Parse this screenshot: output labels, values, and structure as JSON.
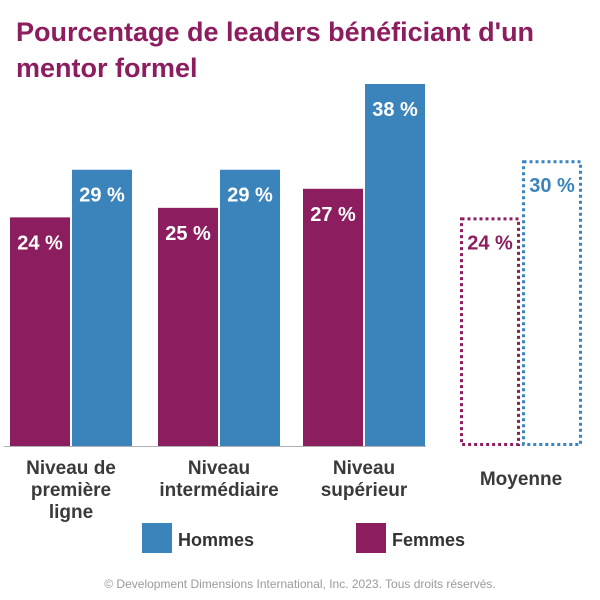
{
  "chart_data": {
    "type": "bar",
    "title": "Pourcentage de leaders bénéficiant d'un mentor formel",
    "categories": [
      "Niveau de première ligne",
      "Niveau intermédiaire",
      "Niveau supérieur",
      "Moyenne"
    ],
    "category_lines": [
      [
        "Niveau de",
        "première",
        "ligne"
      ],
      [
        "Niveau",
        "intermédiaire"
      ],
      [
        "Niveau",
        "supérieur"
      ],
      [
        "Moyenne"
      ]
    ],
    "series": [
      {
        "name": "Femmes",
        "values": [
          24,
          25,
          27,
          24
        ],
        "value_labels": [
          "24 %",
          "25 %",
          "27 %",
          "24 %"
        ],
        "color": "#8c1d5f"
      },
      {
        "name": "Hommes",
        "values": [
          29,
          29,
          38,
          30
        ],
        "value_labels": [
          "29 %",
          "29 %",
          "38 %",
          "30 %"
        ],
        "color": "#3a84bb"
      }
    ],
    "average_category_style": "dotted-outline",
    "ylim": [
      0,
      38
    ],
    "grid": false,
    "legend_placement": "bottom",
    "xlabel": "",
    "ylabel": ""
  },
  "legend": [
    {
      "label": "Hommes",
      "color": "#3a84bb"
    },
    {
      "label": "Femmes",
      "color": "#8c1d5f"
    }
  ],
  "footer": {
    "copyright": "© Development Dimensions International, Inc. 2023. Tous droits réservés."
  }
}
